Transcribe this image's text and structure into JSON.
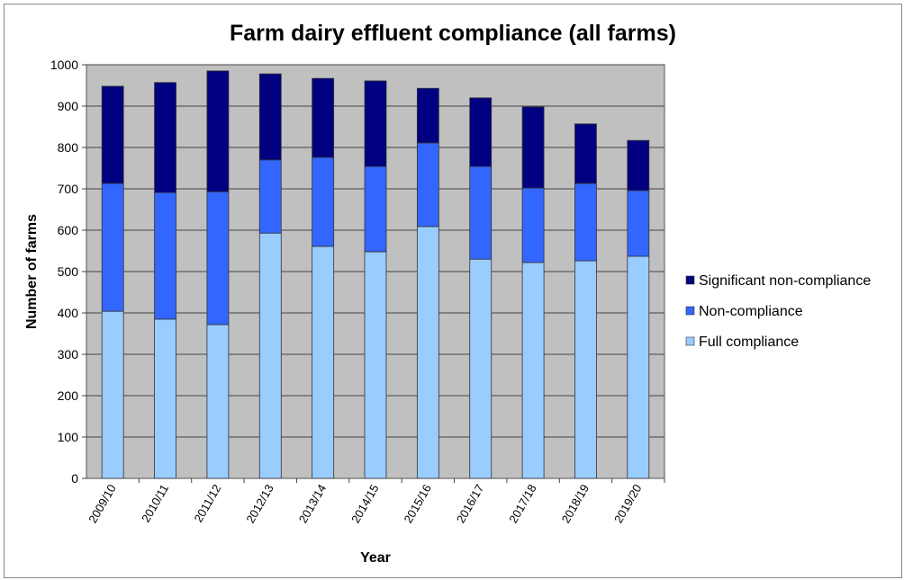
{
  "chart_data": {
    "type": "bar",
    "stacked": true,
    "title": "Farm dairy effluent compliance (all farms)",
    "xlabel": "Year",
    "ylabel": "Number of farms",
    "ylim": [
      0,
      1000
    ],
    "yticks": [
      0,
      100,
      200,
      300,
      400,
      500,
      600,
      700,
      800,
      900,
      1000
    ],
    "grid": true,
    "legend_position": "right",
    "background": "#C0C0C0",
    "categories": [
      "2009/10",
      "2010/11",
      "2011/12",
      "2012/13",
      "2013/14",
      "2014/15",
      "2015/16",
      "2016/17",
      "2017/18",
      "2018/19",
      "2019/20"
    ],
    "series": [
      {
        "name": "Full compliance",
        "color": "#99CCFF",
        "values": [
          404,
          385,
          372,
          593,
          561,
          548,
          609,
          530,
          522,
          526,
          537
        ]
      },
      {
        "name": "Non-compliance",
        "color": "#3366FF",
        "values": [
          309,
          306,
          321,
          177,
          215,
          206,
          202,
          224,
          180,
          187,
          159
        ]
      },
      {
        "name": "Significant non-compliance",
        "color": "#000080",
        "values": [
          235,
          266,
          292,
          208,
          191,
          207,
          132,
          166,
          196,
          144,
          121
        ]
      }
    ]
  }
}
